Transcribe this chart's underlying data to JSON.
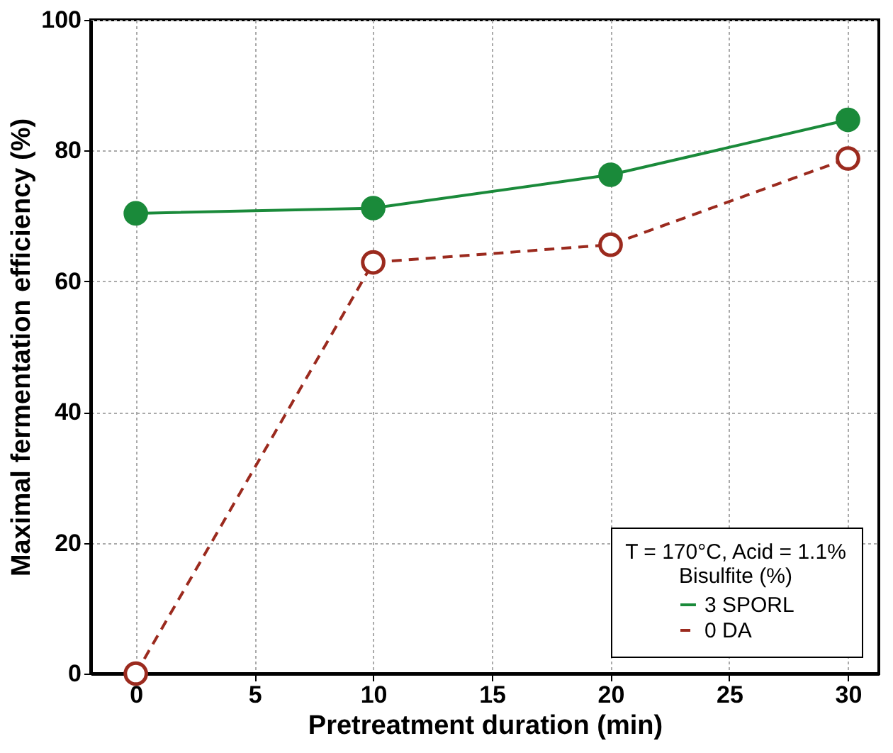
{
  "chart_data": {
    "type": "line",
    "xlabel": "Pretreatment duration (min)",
    "ylabel": "Maximal fermentation efficiency (%)",
    "legend_title": "T = 170°C, Acid = 1.1%\nBisulfite (%)",
    "x": [
      0,
      10,
      20,
      30
    ],
    "series": [
      {
        "name": "3 SPORL",
        "color": "#1a8a3a",
        "values": [
          70.4,
          71.2,
          76.3,
          84.7
        ],
        "line_style": "solid"
      },
      {
        "name": "0 DA",
        "color": "#9b2a1e",
        "values": [
          0,
          62.9,
          65.6,
          78.8
        ],
        "line_style": "dashed"
      }
    ],
    "xlim": [
      -1.9,
      31.3
    ],
    "xticks": [
      0,
      5,
      10,
      15,
      20,
      25,
      30
    ],
    "ylim": [
      0,
      100
    ],
    "yticks": [
      0,
      20,
      40,
      60,
      80,
      100
    ],
    "grid": true,
    "legend": "bottom right",
    "marker": "circle"
  }
}
